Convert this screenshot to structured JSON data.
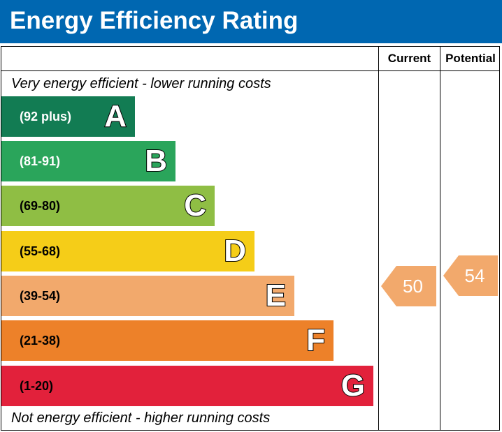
{
  "header": {
    "title": "Energy Efficiency Rating",
    "background": "#0067b1"
  },
  "columns": {
    "current": "Current",
    "potential": "Potential"
  },
  "notes": {
    "top": "Very energy efficient - lower running costs",
    "bottom": "Not energy efficient - higher running costs"
  },
  "chart_data": {
    "type": "bar",
    "title": "Energy Efficiency Rating",
    "categories": [
      "A",
      "B",
      "C",
      "D",
      "E",
      "F",
      "G"
    ],
    "bands": [
      {
        "letter": "A",
        "range": "(92 plus)",
        "min": 92,
        "max": 100,
        "color": "#127c53",
        "text_color": "#ffffff"
      },
      {
        "letter": "B",
        "range": "(81-91)",
        "min": 81,
        "max": 91,
        "color": "#2aa55b",
        "text_color": "#ffffff"
      },
      {
        "letter": "C",
        "range": "(69-80)",
        "min": 69,
        "max": 80,
        "color": "#8fbe44",
        "text_color": "#000000"
      },
      {
        "letter": "D",
        "range": "(55-68)",
        "min": 55,
        "max": 68,
        "color": "#f5cd18",
        "text_color": "#000000"
      },
      {
        "letter": "E",
        "range": "(39-54)",
        "min": 39,
        "max": 54,
        "color": "#f2a96c",
        "text_color": "#000000"
      },
      {
        "letter": "F",
        "range": "(21-38)",
        "min": 21,
        "max": 38,
        "color": "#ed8129",
        "text_color": "#000000"
      },
      {
        "letter": "G",
        "range": "(1-20)",
        "min": 1,
        "max": 20,
        "color": "#e2213b",
        "text_color": "#000000"
      }
    ],
    "current": {
      "value": "50",
      "band": "E",
      "color": "#f2a96c"
    },
    "potential": {
      "value": "54",
      "band": "E",
      "color": "#f2a96c"
    }
  }
}
